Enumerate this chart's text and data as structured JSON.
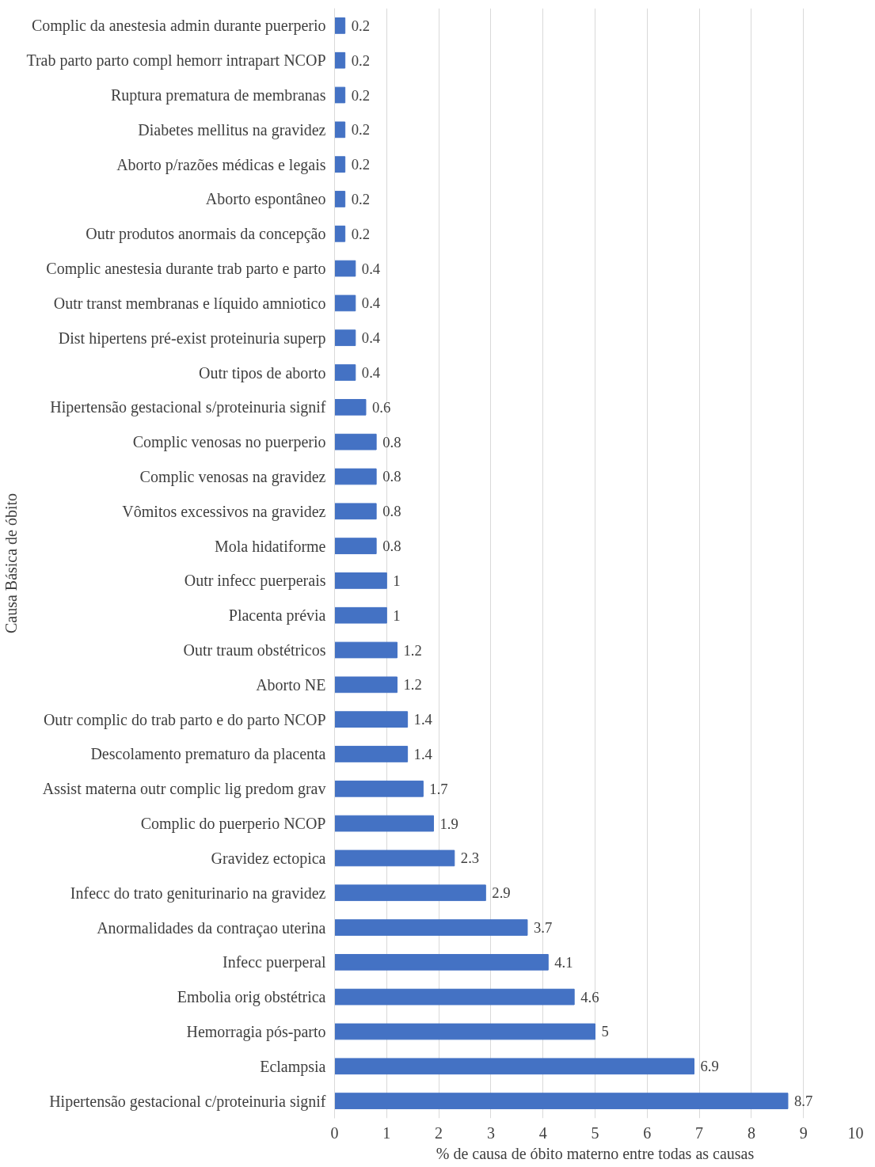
{
  "chart_data": {
    "type": "bar",
    "orientation": "horizontal",
    "xlabel": "% de causa de óbito materno entre todas as causas",
    "ylabel": "Causa Básica de óbito",
    "categories": [
      "Complic da anestesia admin durante puerperio",
      "Trab parto parto compl hemorr intrapart NCOP",
      "Ruptura prematura de membranas",
      "Diabetes mellitus na gravidez",
      "Aborto p/razões médicas e legais",
      "Aborto espontâneo",
      "Outr produtos anormais da concepção",
      "Complic anestesia durante trab parto e parto",
      "Outr transt membranas e líquido amniotico",
      "Dist hipertens pré-exist proteinuria superp",
      "Outr tipos de aborto",
      "Hipertensão gestacional s/proteinuria signif",
      "Complic venosas no puerperio",
      "Complic venosas na gravidez",
      "Vômitos excessivos na gravidez",
      "Mola hidatiforme",
      "Outr infecc puerperais",
      "Placenta prévia",
      "Outr traum obstétricos",
      "Aborto NE",
      "Outr complic do trab parto e do parto NCOP",
      "Descolamento prematuro da placenta",
      "Assist materna outr complic lig predom grav",
      "Complic do puerperio NCOP",
      "Gravidez ectopica",
      "Infecc do trato geniturinario na gravidez",
      "Anormalidades da contraçao uterina",
      "Infecc puerperal",
      "Embolia orig obstétrica",
      "Hemorragia pós-parto",
      "Eclampsia",
      "Hipertensão gestacional c/proteinuria signif"
    ],
    "values": [
      0.2,
      0.2,
      0.2,
      0.2,
      0.2,
      0.2,
      0.2,
      0.4,
      0.4,
      0.4,
      0.4,
      0.6,
      0.8,
      0.8,
      0.8,
      0.8,
      1,
      1,
      1.2,
      1.2,
      1.4,
      1.4,
      1.7,
      1.9,
      2.3,
      2.9,
      3.7,
      4.1,
      4.6,
      5,
      6.9,
      8.7
    ],
    "color": "#4472c4",
    "xlim": [
      0,
      10
    ],
    "xticks": [
      0,
      1,
      2,
      3,
      4,
      5,
      6,
      7,
      8,
      9,
      10
    ],
    "grid": "x",
    "data_labels": true
  }
}
